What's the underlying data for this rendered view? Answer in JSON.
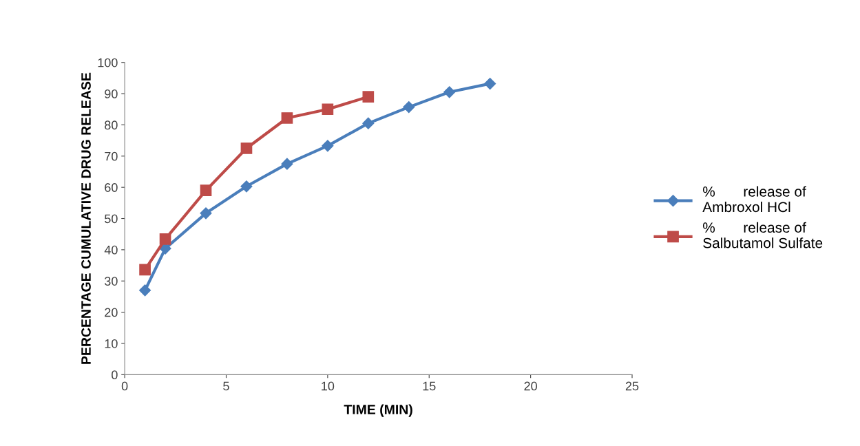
{
  "chart_data": {
    "type": "line",
    "xlabel": "TIME (MIN)",
    "ylabel": "PERCENTAGE CUMULATIVE DRUG RELEASE",
    "series": [
      {
        "name": "%       release of\nAmbroxol HCl",
        "color": "#4a7ebb",
        "marker": "diamond",
        "x": [
          1,
          2,
          4,
          6,
          8,
          10,
          12,
          14,
          16,
          18
        ],
        "values": [
          27.0,
          40.4,
          51.7,
          60.3,
          67.5,
          73.3,
          80.5,
          85.7,
          90.5,
          93.2
        ]
      },
      {
        "name": "%       release of\nSalbutamol Sulfate",
        "color": "#be4b48",
        "marker": "square",
        "x": [
          1,
          2,
          4,
          6,
          8,
          10,
          12
        ],
        "values": [
          33.6,
          43.4,
          59.0,
          72.5,
          82.2,
          85.0,
          89.0
        ]
      }
    ],
    "xlim": [
      0,
      25
    ],
    "xticks": [
      0,
      5,
      10,
      15,
      20,
      25
    ],
    "ylim": [
      0,
      100
    ],
    "yticks": [
      0,
      10,
      20,
      30,
      40,
      50,
      60,
      70,
      80,
      90,
      100
    ],
    "grid": false,
    "legend": "right",
    "line_style": "solid"
  }
}
